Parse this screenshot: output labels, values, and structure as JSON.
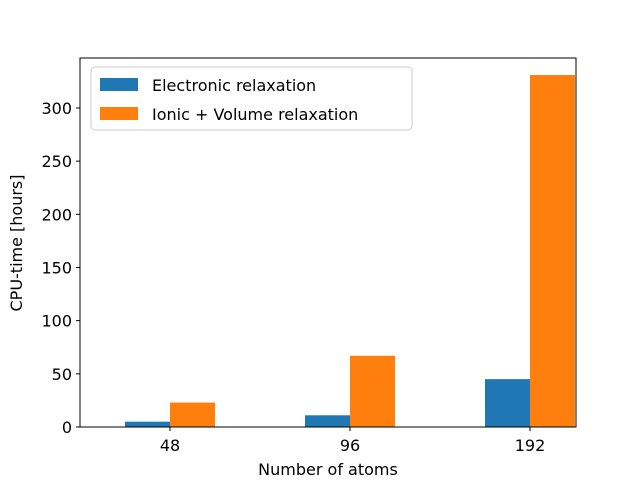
{
  "chart_data": {
    "type": "bar",
    "title": "",
    "xlabel": "Number of atoms",
    "ylabel": "CPU-time [hours]",
    "categories": [
      "48",
      "96",
      "192"
    ],
    "series": [
      {
        "name": "Electronic relaxation",
        "values": [
          5,
          11,
          45
        ],
        "color": "#1f77b4"
      },
      {
        "name": "Ionic + Volume relaxation",
        "values": [
          23,
          67,
          331
        ],
        "color": "#ff7f0e"
      }
    ],
    "ylim": [
      0,
      347
    ],
    "yticks": [
      0,
      50,
      100,
      150,
      200,
      250,
      300
    ],
    "grid": false,
    "legend_position": "top-left"
  }
}
